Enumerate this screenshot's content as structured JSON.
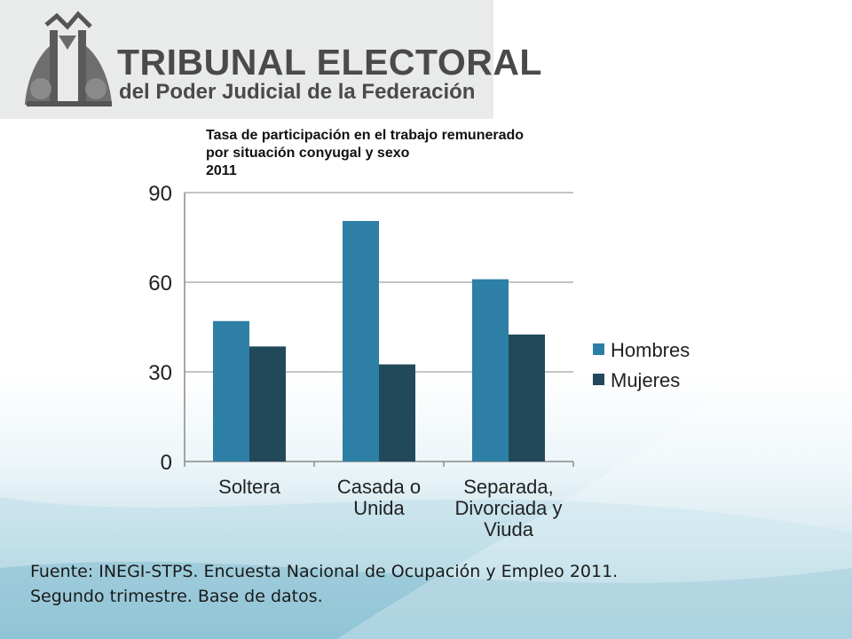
{
  "logo": {
    "title": "TRIBUNAL ELECTORAL",
    "subtitle": "del Poder Judicial de la Federación",
    "emblem": "scales-of-justice-emblem"
  },
  "chart_data": {
    "type": "bar",
    "title_lines": [
      "Tasa de participación en el trabajo remunerado",
      "por situación conyugal y sexo",
      "2011"
    ],
    "categories": [
      [
        "Soltera"
      ],
      [
        "Casada o",
        "Unida"
      ],
      [
        "Separada,",
        "Divorciada y",
        "Viuda"
      ]
    ],
    "series": [
      {
        "name": "Hombres",
        "color": "#2e7fa6",
        "values": [
          47,
          80.5,
          61
        ]
      },
      {
        "name": "Mujeres",
        "color": "#22495a",
        "values": [
          38.5,
          32.5,
          42.5
        ]
      }
    ],
    "yticks": [
      "0",
      "30",
      "60",
      "90"
    ],
    "ytick_values": [
      0,
      30,
      60,
      90
    ],
    "ylim": [
      0,
      90
    ],
    "grid": true,
    "legend_position": "right"
  },
  "source": {
    "line1": "Fuente: INEGI-STPS. Encuesta Nacional de Ocupación y Empleo 2011.",
    "line2": "Segundo trimestre. Base de datos."
  }
}
